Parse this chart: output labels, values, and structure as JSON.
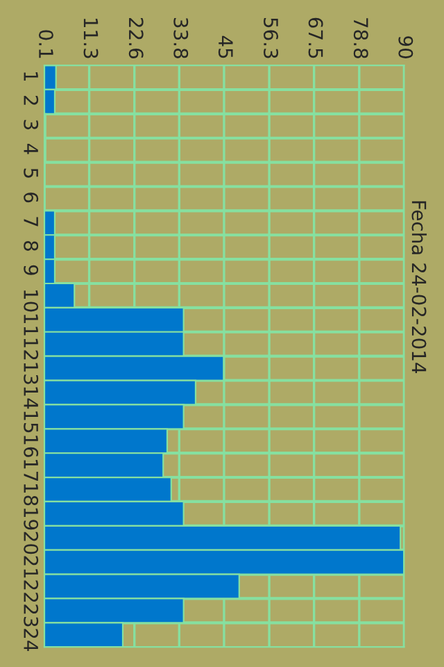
{
  "chart_data": {
    "type": "bar",
    "orientation": "horizontal",
    "title": "Fecha 24-02-2014",
    "categories": [
      "1",
      "2",
      "3",
      "4",
      "5",
      "6",
      "7",
      "8",
      "9",
      "10",
      "11",
      "12",
      "13",
      "14",
      "15",
      "16",
      "17",
      "18",
      "19",
      "20",
      "21",
      "22",
      "23",
      "24"
    ],
    "values": [
      3.0,
      2.7,
      0.4,
      0.4,
      0.2,
      0.2,
      2.7,
      2.7,
      2.7,
      7.6,
      34.9,
      34.9,
      44.9,
      37.9,
      34.9,
      30.8,
      29.8,
      31.8,
      34.9,
      89.1,
      90,
      48.8,
      34.9,
      19.7
    ],
    "color": "#0077cc",
    "xlim": [
      0.1,
      90
    ],
    "xticks": [
      0.1,
      11.3,
      22.6,
      33.8,
      45,
      56.3,
      67.5,
      78.8,
      90
    ],
    "grid": true
  }
}
